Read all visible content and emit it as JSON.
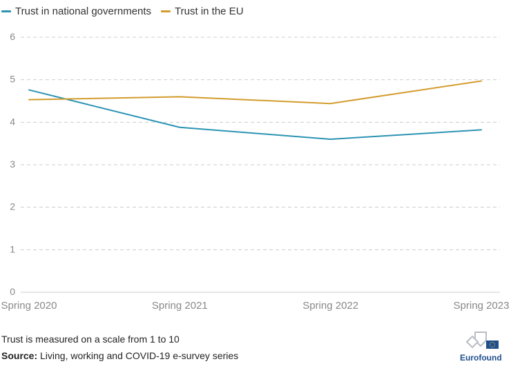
{
  "chart_data": {
    "type": "line",
    "categories": [
      "Spring 2020",
      "Spring 2021",
      "Spring 2022",
      "Spring 2023"
    ],
    "series": [
      {
        "name": "Trust in national governments",
        "color": "#2a93b3",
        "values": [
          4.76,
          3.88,
          3.6,
          3.82
        ]
      },
      {
        "name": "Trust in the EU",
        "color": "#d39b2c",
        "values": [
          4.53,
          4.6,
          4.44,
          4.97
        ]
      }
    ],
    "ylim": [
      0,
      6
    ],
    "yticks": [
      "0",
      "1",
      "2",
      "3",
      "4",
      "5",
      "6"
    ],
    "grid": true,
    "legend": "top-left"
  },
  "note": "Trust is measured on a scale from 1 to 10",
  "source": {
    "label": "Source:",
    "text": "Living, working and COVID-19 e-survey series"
  },
  "logo": {
    "text": "Eurofound"
  },
  "colors": {
    "gov": "#2a93b3",
    "eu": "#d39b2c",
    "grid": "#cccccc",
    "brand": "#1f4e8c"
  }
}
